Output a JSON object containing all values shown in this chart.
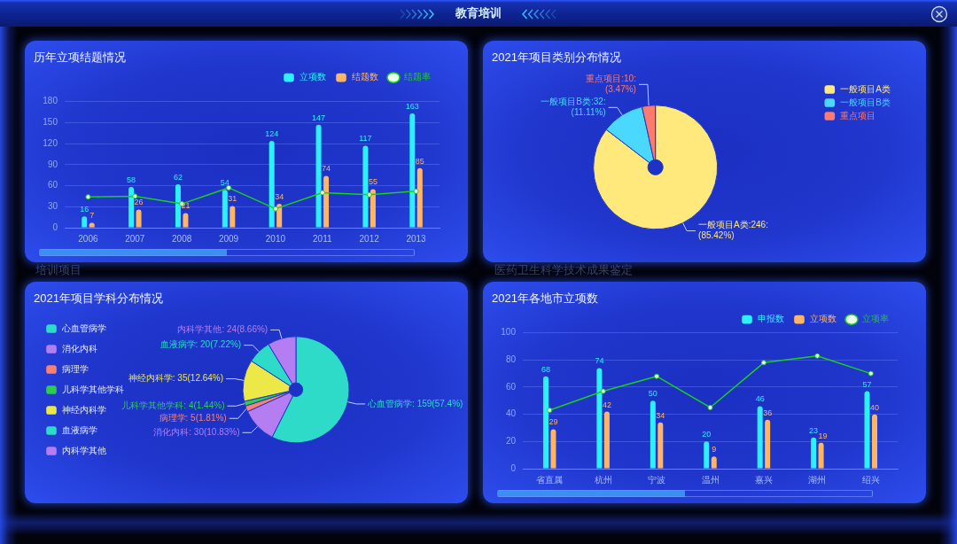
{
  "chart_data": [
    {
      "type": "other",
      "title": "教育培训",
      "annotations": [
        "培训项目",
        "医药卫生科学技术成果鉴定"
      ]
    },
    {
      "type": "bar",
      "title": "历年立项结题情况",
      "categories": [
        "2006",
        "2007",
        "2008",
        "2009",
        "2010",
        "2011",
        "2012",
        "2013"
      ],
      "series": [
        {
          "name": "立项数",
          "color": "#2cf0fc",
          "values": [
            16,
            58,
            62,
            54,
            124,
            147,
            117,
            163
          ],
          "value_labels": [
            "16",
            "58",
            "62",
            "54",
            "124",
            "147",
            "117",
            "163"
          ]
        },
        {
          "name": "结题数",
          "color": "#ffb563",
          "values": [
            7,
            26,
            21,
            31,
            34,
            74,
            55,
            85
          ],
          "value_labels": [
            "7",
            "26",
            "21",
            "31",
            "34",
            "74",
            "55",
            "85"
          ]
        },
        {
          "name": "结题率",
          "type": "line",
          "color": "#1ad11a",
          "values": [
            44,
            45,
            34,
            57,
            27,
            50,
            47,
            52
          ],
          "marker": "circle"
        }
      ],
      "ylim": [
        0,
        180
      ],
      "yticks": [
        0,
        30,
        60,
        90,
        120,
        150,
        180
      ],
      "grid": "y",
      "legend": "top right"
    },
    {
      "type": "donut",
      "title": "2021年项目类别分布情况",
      "categories": [
        "一般项目A类",
        "一般项目B类",
        "重点项目"
      ],
      "values": [
        246,
        32,
        10
      ],
      "colors": [
        "#ffe97d",
        "#4ad8fe",
        "#fb7b6f"
      ],
      "value_labels": [
        "一般项目A类:246:\n(85.42%)",
        "一般项目B类:32:\n(11.11%)",
        "重点项目:10:\n(3.47%)"
      ],
      "legend": "top right"
    },
    {
      "type": "donut",
      "title": "2021年项目学科分布情况",
      "categories": [
        "心血管病学",
        "消化内科",
        "病理学",
        "儿科学其他学科",
        "神经内科学",
        "血液病学",
        "内科学其他"
      ],
      "values": [
        159,
        30,
        5,
        4,
        35,
        20,
        24
      ],
      "colors": [
        "#2edbc8",
        "#b57df2",
        "#fa8170",
        "#2ecc4f",
        "#ece847",
        "#2edbc8",
        "#b57df2"
      ],
      "value_labels": [
        "心血管病学: 159(57.4%)",
        "消化内科: 30(10.83%)",
        "病理学: 5(1.81%)",
        "儿科学其他学科: 4(1.44%)",
        "神经内科学: 35(12.64%)",
        "血液病学: 20(7.22%)",
        "内科学其他: 24(8.66%)"
      ],
      "legend": "top left"
    },
    {
      "type": "bar",
      "title": "2021年各地市立项数",
      "categories": [
        "省直属",
        "杭州",
        "宁波",
        "温州",
        "嘉兴",
        "湖州",
        "绍兴"
      ],
      "series": [
        {
          "name": "申报数",
          "color": "#2cf0fc",
          "values": [
            68,
            74,
            50,
            20,
            46,
            23,
            57
          ],
          "value_labels": [
            "68",
            "74",
            "50",
            "20",
            "46",
            "23",
            "57"
          ]
        },
        {
          "name": "立项数",
          "color": "#ffb563",
          "values": [
            29,
            42,
            34,
            9,
            36,
            19,
            40
          ],
          "value_labels": [
            "29",
            "42",
            "34",
            "9",
            "36",
            "19",
            "40"
          ]
        },
        {
          "name": "立项率",
          "type": "line",
          "color": "#1ad11a",
          "values": [
            43,
            57,
            68,
            45,
            78,
            83,
            70
          ],
          "marker": "circle"
        }
      ],
      "ylim": [
        0,
        100
      ],
      "yticks": [
        0,
        20,
        40,
        60,
        80,
        100
      ],
      "grid": "y",
      "legend": "top right"
    }
  ]
}
